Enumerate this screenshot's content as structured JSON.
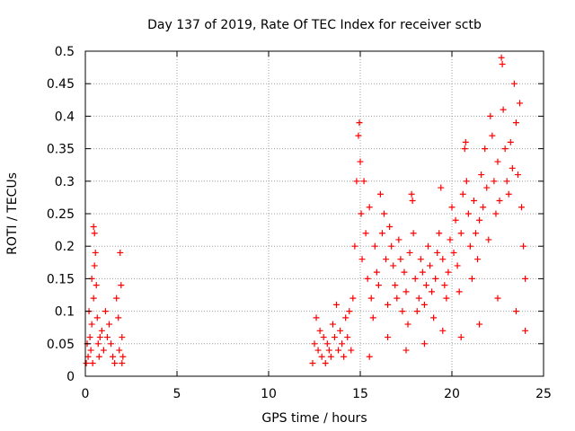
{
  "chart_data": {
    "type": "scatter",
    "title": "Day 137 of 2019, Rate Of TEC Index for receiver sctb",
    "xlabel": "GPS time / hours",
    "ylabel": "ROTI / TECUs",
    "xlim": [
      0,
      25
    ],
    "ylim": [
      0,
      0.5
    ],
    "x_ticks": [
      0,
      5,
      10,
      15,
      20,
      25
    ],
    "x_tick_labels": [
      "0",
      "5",
      "10",
      "15",
      "20",
      "25"
    ],
    "y_ticks": [
      0,
      0.05,
      0.1,
      0.15,
      0.2,
      0.25,
      0.3,
      0.35,
      0.4,
      0.45,
      0.5
    ],
    "y_tick_labels": [
      "0",
      "0.05",
      "0.1",
      "0.15",
      "0.2",
      "0.25",
      "0.3",
      "0.35",
      "0.4",
      "0.45",
      "0.5"
    ],
    "grid": true,
    "marker": "+",
    "marker_color": "#ff0000",
    "series": [
      {
        "name": "ROTI",
        "points": [
          [
            0.05,
            0.02
          ],
          [
            0.1,
            0.05
          ],
          [
            0.15,
            0.03
          ],
          [
            0.2,
            0.1
          ],
          [
            0.25,
            0.06
          ],
          [
            0.3,
            0.04
          ],
          [
            0.35,
            0.08
          ],
          [
            0.4,
            0.02
          ],
          [
            0.45,
            0.12
          ],
          [
            0.5,
            0.17
          ],
          [
            0.5,
            0.22
          ],
          [
            0.55,
            0.19
          ],
          [
            0.6,
            0.14
          ],
          [
            0.65,
            0.09
          ],
          [
            0.7,
            0.05
          ],
          [
            0.75,
            0.03
          ],
          [
            0.8,
            0.06
          ],
          [
            0.9,
            0.07
          ],
          [
            1.0,
            0.04
          ],
          [
            1.1,
            0.1
          ],
          [
            1.2,
            0.06
          ],
          [
            1.3,
            0.08
          ],
          [
            1.4,
            0.05
          ],
          [
            1.5,
            0.03
          ],
          [
            1.6,
            0.02
          ],
          [
            1.7,
            0.12
          ],
          [
            1.8,
            0.09
          ],
          [
            1.9,
            0.19
          ],
          [
            1.95,
            0.14
          ],
          [
            2.0,
            0.06
          ],
          [
            2.05,
            0.03
          ],
          [
            2.0,
            0.02
          ],
          [
            1.85,
            0.04
          ],
          [
            0.35,
            0.15
          ],
          [
            0.45,
            0.23
          ],
          [
            12.4,
            0.02
          ],
          [
            12.5,
            0.05
          ],
          [
            12.6,
            0.09
          ],
          [
            12.7,
            0.04
          ],
          [
            12.8,
            0.07
          ],
          [
            12.9,
            0.03
          ],
          [
            13.0,
            0.06
          ],
          [
            13.1,
            0.02
          ],
          [
            13.2,
            0.05
          ],
          [
            13.3,
            0.04
          ],
          [
            13.4,
            0.03
          ],
          [
            13.5,
            0.08
          ],
          [
            13.6,
            0.06
          ],
          [
            13.7,
            0.11
          ],
          [
            13.8,
            0.04
          ],
          [
            13.9,
            0.07
          ],
          [
            14.0,
            0.05
          ],
          [
            14.1,
            0.03
          ],
          [
            14.2,
            0.09
          ],
          [
            14.3,
            0.06
          ],
          [
            14.4,
            0.1
          ],
          [
            14.5,
            0.04
          ],
          [
            14.6,
            0.12
          ],
          [
            14.7,
            0.2
          ],
          [
            14.8,
            0.3
          ],
          [
            14.9,
            0.37
          ],
          [
            14.95,
            0.39
          ],
          [
            15.0,
            0.33
          ],
          [
            15.05,
            0.25
          ],
          [
            15.1,
            0.18
          ],
          [
            15.2,
            0.3
          ],
          [
            15.3,
            0.22
          ],
          [
            15.4,
            0.15
          ],
          [
            15.5,
            0.26
          ],
          [
            15.6,
            0.12
          ],
          [
            15.7,
            0.09
          ],
          [
            15.8,
            0.2
          ],
          [
            15.9,
            0.16
          ],
          [
            16.0,
            0.14
          ],
          [
            16.1,
            0.28
          ],
          [
            16.2,
            0.22
          ],
          [
            16.3,
            0.25
          ],
          [
            16.4,
            0.18
          ],
          [
            16.5,
            0.11
          ],
          [
            16.6,
            0.23
          ],
          [
            16.7,
            0.2
          ],
          [
            16.8,
            0.17
          ],
          [
            16.9,
            0.14
          ],
          [
            17.0,
            0.12
          ],
          [
            17.1,
            0.21
          ],
          [
            17.2,
            0.18
          ],
          [
            17.3,
            0.1
          ],
          [
            17.4,
            0.16
          ],
          [
            17.5,
            0.13
          ],
          [
            17.6,
            0.08
          ],
          [
            17.7,
            0.19
          ],
          [
            17.8,
            0.28
          ],
          [
            17.85,
            0.27
          ],
          [
            17.9,
            0.22
          ],
          [
            18.0,
            0.15
          ],
          [
            18.1,
            0.1
          ],
          [
            18.2,
            0.12
          ],
          [
            18.3,
            0.18
          ],
          [
            18.4,
            0.16
          ],
          [
            18.5,
            0.11
          ],
          [
            18.6,
            0.14
          ],
          [
            18.7,
            0.2
          ],
          [
            18.8,
            0.17
          ],
          [
            18.9,
            0.13
          ],
          [
            19.0,
            0.09
          ],
          [
            19.1,
            0.15
          ],
          [
            19.2,
            0.19
          ],
          [
            19.3,
            0.22
          ],
          [
            19.4,
            0.29
          ],
          [
            19.5,
            0.18
          ],
          [
            19.6,
            0.14
          ],
          [
            19.7,
            0.12
          ],
          [
            19.8,
            0.16
          ],
          [
            19.9,
            0.21
          ],
          [
            20.0,
            0.26
          ],
          [
            20.1,
            0.19
          ],
          [
            20.2,
            0.24
          ],
          [
            20.3,
            0.17
          ],
          [
            20.4,
            0.13
          ],
          [
            20.5,
            0.22
          ],
          [
            20.6,
            0.28
          ],
          [
            20.7,
            0.35
          ],
          [
            20.75,
            0.36
          ],
          [
            20.8,
            0.3
          ],
          [
            20.9,
            0.25
          ],
          [
            21.0,
            0.2
          ],
          [
            21.1,
            0.15
          ],
          [
            21.2,
            0.27
          ],
          [
            21.3,
            0.22
          ],
          [
            21.4,
            0.18
          ],
          [
            21.5,
            0.24
          ],
          [
            21.6,
            0.31
          ],
          [
            21.7,
            0.26
          ],
          [
            21.8,
            0.35
          ],
          [
            21.9,
            0.29
          ],
          [
            22.0,
            0.21
          ],
          [
            22.1,
            0.4
          ],
          [
            22.2,
            0.37
          ],
          [
            22.3,
            0.3
          ],
          [
            22.4,
            0.25
          ],
          [
            22.5,
            0.33
          ],
          [
            22.6,
            0.27
          ],
          [
            22.7,
            0.49
          ],
          [
            22.75,
            0.48
          ],
          [
            22.8,
            0.41
          ],
          [
            22.9,
            0.35
          ],
          [
            23.0,
            0.3
          ],
          [
            23.1,
            0.28
          ],
          [
            23.2,
            0.36
          ],
          [
            23.3,
            0.32
          ],
          [
            23.4,
            0.45
          ],
          [
            23.5,
            0.39
          ],
          [
            23.6,
            0.31
          ],
          [
            23.7,
            0.42
          ],
          [
            23.8,
            0.26
          ],
          [
            23.9,
            0.2
          ],
          [
            24.0,
            0.15
          ],
          [
            24.0,
            0.07
          ],
          [
            23.5,
            0.1
          ],
          [
            22.5,
            0.12
          ],
          [
            21.5,
            0.08
          ],
          [
            20.5,
            0.06
          ],
          [
            19.5,
            0.07
          ],
          [
            18.5,
            0.05
          ],
          [
            17.5,
            0.04
          ],
          [
            16.5,
            0.06
          ],
          [
            15.5,
            0.03
          ]
        ]
      }
    ]
  }
}
